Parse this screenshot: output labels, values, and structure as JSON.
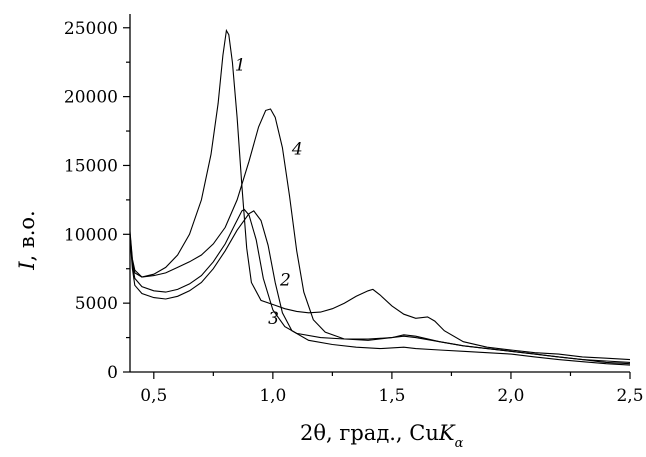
{
  "chart_data": {
    "type": "line",
    "xlabel_main": "2θ, град., Cu",
    "xlabel_italic": "K",
    "xlabel_sub": "α",
    "ylabel_italic": "I",
    "ylabel_rest": ", в.о.",
    "xlim": [
      0.4,
      2.5
    ],
    "ylim": [
      0,
      26000
    ],
    "x_ticks": [
      0.5,
      1.0,
      1.5,
      2.0,
      2.5
    ],
    "x_tick_labels": [
      "0,5",
      "1,0",
      "1,5",
      "2,0",
      "2,5"
    ],
    "y_ticks": [
      0,
      5000,
      10000,
      15000,
      20000,
      25000
    ],
    "y_tick_labels": [
      "0",
      "5000",
      "10000",
      "15000",
      "20000",
      "25000"
    ],
    "series": [
      {
        "name": "1",
        "label_at": [
          0.84,
          21900
        ],
        "points": [
          [
            0.4,
            10200
          ],
          [
            0.41,
            8200
          ],
          [
            0.42,
            7400
          ],
          [
            0.45,
            6900
          ],
          [
            0.5,
            7100
          ],
          [
            0.55,
            7600
          ],
          [
            0.6,
            8500
          ],
          [
            0.65,
            10000
          ],
          [
            0.7,
            12500
          ],
          [
            0.74,
            15800
          ],
          [
            0.77,
            19500
          ],
          [
            0.79,
            23000
          ],
          [
            0.805,
            24800
          ],
          [
            0.815,
            24500
          ],
          [
            0.83,
            22500
          ],
          [
            0.85,
            18500
          ],
          [
            0.87,
            13500
          ],
          [
            0.89,
            9000
          ],
          [
            0.91,
            6500
          ],
          [
            0.95,
            5200
          ],
          [
            1.0,
            4900
          ],
          [
            1.05,
            4600
          ],
          [
            1.1,
            4400
          ],
          [
            1.15,
            4300
          ],
          [
            1.2,
            4350
          ],
          [
            1.25,
            4600
          ],
          [
            1.3,
            5000
          ],
          [
            1.35,
            5500
          ],
          [
            1.4,
            5900
          ],
          [
            1.42,
            6000
          ],
          [
            1.45,
            5600
          ],
          [
            1.5,
            4800
          ],
          [
            1.55,
            4200
          ],
          [
            1.6,
            3900
          ],
          [
            1.65,
            4000
          ],
          [
            1.68,
            3700
          ],
          [
            1.72,
            3000
          ],
          [
            1.8,
            2200
          ],
          [
            1.9,
            1800
          ],
          [
            2.0,
            1600
          ],
          [
            2.1,
            1400
          ],
          [
            2.2,
            1300
          ],
          [
            2.3,
            1100
          ],
          [
            2.4,
            1000
          ],
          [
            2.5,
            900
          ]
        ]
      },
      {
        "name": "2",
        "label_at": [
          1.03,
          6300
        ],
        "points": [
          [
            0.4,
            10000
          ],
          [
            0.41,
            7800
          ],
          [
            0.42,
            6800
          ],
          [
            0.45,
            6200
          ],
          [
            0.5,
            5900
          ],
          [
            0.55,
            5800
          ],
          [
            0.6,
            6000
          ],
          [
            0.65,
            6400
          ],
          [
            0.7,
            7000
          ],
          [
            0.75,
            8000
          ],
          [
            0.8,
            9300
          ],
          [
            0.84,
            10700
          ],
          [
            0.87,
            11700
          ],
          [
            0.88,
            11800
          ],
          [
            0.9,
            11400
          ],
          [
            0.93,
            9600
          ],
          [
            0.96,
            6800
          ],
          [
            1.0,
            4500
          ],
          [
            1.05,
            3300
          ],
          [
            1.1,
            2800
          ],
          [
            1.2,
            2500
          ],
          [
            1.3,
            2400
          ],
          [
            1.4,
            2400
          ],
          [
            1.5,
            2500
          ],
          [
            1.55,
            2600
          ],
          [
            1.6,
            2500
          ],
          [
            1.7,
            2200
          ],
          [
            1.8,
            1900
          ],
          [
            1.9,
            1700
          ],
          [
            2.0,
            1500
          ],
          [
            2.1,
            1300
          ],
          [
            2.2,
            1100
          ],
          [
            2.3,
            900
          ],
          [
            2.4,
            800
          ],
          [
            2.5,
            700
          ]
        ]
      },
      {
        "name": "3",
        "label_at": [
          0.98,
          3500
        ],
        "points": [
          [
            0.4,
            9800
          ],
          [
            0.41,
            7500
          ],
          [
            0.42,
            6300
          ],
          [
            0.45,
            5700
          ],
          [
            0.5,
            5400
          ],
          [
            0.55,
            5300
          ],
          [
            0.6,
            5500
          ],
          [
            0.65,
            5900
          ],
          [
            0.7,
            6500
          ],
          [
            0.75,
            7500
          ],
          [
            0.8,
            8800
          ],
          [
            0.85,
            10300
          ],
          [
            0.9,
            11500
          ],
          [
            0.92,
            11700
          ],
          [
            0.95,
            11000
          ],
          [
            0.98,
            9200
          ],
          [
            1.01,
            6500
          ],
          [
            1.04,
            4300
          ],
          [
            1.08,
            3000
          ],
          [
            1.15,
            2300
          ],
          [
            1.25,
            2000
          ],
          [
            1.35,
            1800
          ],
          [
            1.45,
            1700
          ],
          [
            1.55,
            1800
          ],
          [
            1.6,
            1700
          ],
          [
            1.7,
            1600
          ],
          [
            1.8,
            1500
          ],
          [
            1.9,
            1400
          ],
          [
            2.0,
            1300
          ],
          [
            2.1,
            1100
          ],
          [
            2.2,
            900
          ],
          [
            2.3,
            750
          ],
          [
            2.4,
            600
          ],
          [
            2.5,
            500
          ]
        ]
      },
      {
        "name": "4",
        "label_at": [
          1.08,
          15800
        ],
        "points": [
          [
            0.4,
            10000
          ],
          [
            0.41,
            8000
          ],
          [
            0.42,
            7200
          ],
          [
            0.45,
            6900
          ],
          [
            0.5,
            7000
          ],
          [
            0.55,
            7200
          ],
          [
            0.6,
            7600
          ],
          [
            0.65,
            8000
          ],
          [
            0.7,
            8500
          ],
          [
            0.75,
            9300
          ],
          [
            0.8,
            10500
          ],
          [
            0.85,
            12500
          ],
          [
            0.9,
            15300
          ],
          [
            0.94,
            17800
          ],
          [
            0.97,
            19000
          ],
          [
            0.99,
            19100
          ],
          [
            1.01,
            18500
          ],
          [
            1.04,
            16300
          ],
          [
            1.07,
            12800
          ],
          [
            1.1,
            8800
          ],
          [
            1.13,
            5800
          ],
          [
            1.17,
            3800
          ],
          [
            1.22,
            2900
          ],
          [
            1.3,
            2400
          ],
          [
            1.4,
            2300
          ],
          [
            1.5,
            2500
          ],
          [
            1.55,
            2700
          ],
          [
            1.6,
            2600
          ],
          [
            1.7,
            2200
          ],
          [
            1.8,
            1900
          ],
          [
            1.9,
            1700
          ],
          [
            2.0,
            1500
          ],
          [
            2.1,
            1300
          ],
          [
            2.2,
            1100
          ],
          [
            2.3,
            900
          ],
          [
            2.4,
            700
          ],
          [
            2.5,
            600
          ]
        ]
      }
    ]
  }
}
